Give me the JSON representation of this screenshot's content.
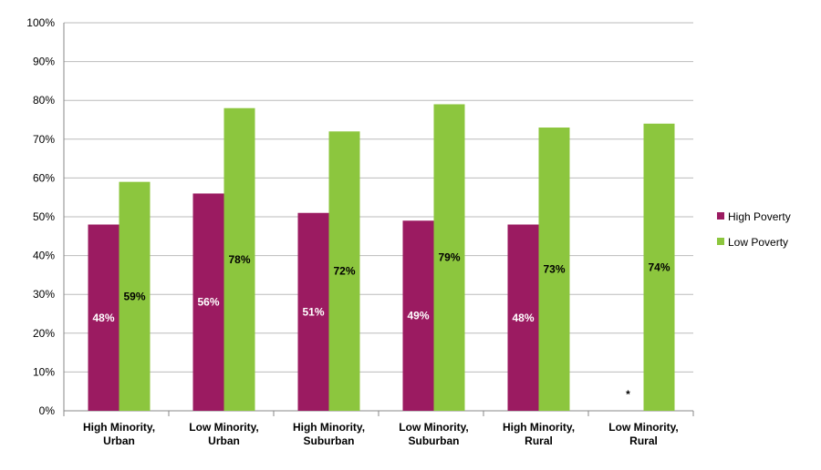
{
  "chart_data": {
    "type": "bar",
    "title": "",
    "xlabel": "",
    "ylabel": "",
    "ylim": [
      0,
      100
    ],
    "y_tick_labels": [
      "0%",
      "10%",
      "20%",
      "30%",
      "40%",
      "50%",
      "60%",
      "70%",
      "80%",
      "90%",
      "100%"
    ],
    "grid": true,
    "legend_placement": "right",
    "categories": [
      [
        "High Minority,",
        "Urban"
      ],
      [
        "Low Minority,",
        "Urban"
      ],
      [
        "High Minority,",
        "Suburban"
      ],
      [
        "Low Minority,",
        "Suburban"
      ],
      [
        "High Minority,",
        "Rural"
      ],
      [
        "Low Minority,",
        "Rural"
      ]
    ],
    "series": [
      {
        "name": "High Poverty",
        "color": "#9B1B61",
        "label_color": "#ffffff",
        "values": [
          48,
          56,
          51,
          49,
          48,
          null
        ],
        "labels": [
          "48%",
          "56%",
          "51%",
          "49%",
          "48%",
          ""
        ]
      },
      {
        "name": "Low Poverty",
        "color": "#8CC63E",
        "label_color": "#000000",
        "values": [
          59,
          78,
          72,
          79,
          73,
          74
        ],
        "labels": [
          "59%",
          "78%",
          "72%",
          "79%",
          "73%",
          "74%"
        ]
      }
    ],
    "annotations": [
      {
        "category_index": 5,
        "series_index": 0,
        "text": "*"
      }
    ]
  }
}
